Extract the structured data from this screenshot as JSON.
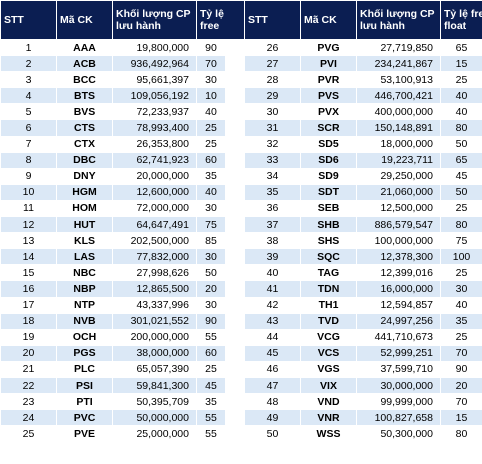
{
  "headers": {
    "stt": "STT",
    "code": "Mã CK",
    "shares_l1": "Khối lượng CP",
    "shares_l2": "lưu hành",
    "free_left_l1": "Tỷ lệ",
    "free_left_l2": "free",
    "free_right_l1": "Tỷ lệ free",
    "free_right_l2": "float"
  },
  "rows": [
    {
      "stt": "1",
      "code": "AAA",
      "shares": "19,800,000",
      "free": "90",
      "stt2": "26",
      "code2": "PVG",
      "shares2": "27,719,850",
      "free2": "65"
    },
    {
      "stt": "2",
      "code": "ACB",
      "shares": "936,492,964",
      "free": "70",
      "stt2": "27",
      "code2": "PVI",
      "shares2": "234,241,867",
      "free2": "15"
    },
    {
      "stt": "3",
      "code": "BCC",
      "shares": "95,661,397",
      "free": "30",
      "stt2": "28",
      "code2": "PVR",
      "shares2": "53,100,913",
      "free2": "25"
    },
    {
      "stt": "4",
      "code": "BTS",
      "shares": "109,056,192",
      "free": "10",
      "stt2": "29",
      "code2": "PVS",
      "shares2": "446,700,421",
      "free2": "40"
    },
    {
      "stt": "5",
      "code": "BVS",
      "shares": "72,233,937",
      "free": "40",
      "stt2": "30",
      "code2": "PVX",
      "shares2": "400,000,000",
      "free2": "40"
    },
    {
      "stt": "6",
      "code": "CTS",
      "shares": "78,993,400",
      "free": "25",
      "stt2": "31",
      "code2": "SCR",
      "shares2": "150,148,891",
      "free2": "80"
    },
    {
      "stt": "7",
      "code": "CTX",
      "shares": "26,353,800",
      "free": "25",
      "stt2": "32",
      "code2": "SD5",
      "shares2": "18,000,000",
      "free2": "50"
    },
    {
      "stt": "8",
      "code": "DBC",
      "shares": "62,741,923",
      "free": "60",
      "stt2": "33",
      "code2": "SD6",
      "shares2": "19,223,711",
      "free2": "65"
    },
    {
      "stt": "9",
      "code": "DNY",
      "shares": "20,000,000",
      "free": "35",
      "stt2": "34",
      "code2": "SD9",
      "shares2": "29,250,000",
      "free2": "45"
    },
    {
      "stt": "10",
      "code": "HGM",
      "shares": "12,600,000",
      "free": "40",
      "stt2": "35",
      "code2": "SDT",
      "shares2": "21,060,000",
      "free2": "50"
    },
    {
      "stt": "11",
      "code": "HOM",
      "shares": "72,000,000",
      "free": "30",
      "stt2": "36",
      "code2": "SEB",
      "shares2": "12,500,000",
      "free2": "25"
    },
    {
      "stt": "12",
      "code": "HUT",
      "shares": "64,647,491",
      "free": "75",
      "stt2": "37",
      "code2": "SHB",
      "shares2": "886,579,547",
      "free2": "80"
    },
    {
      "stt": "13",
      "code": "KLS",
      "shares": "202,500,000",
      "free": "85",
      "stt2": "38",
      "code2": "SHS",
      "shares2": "100,000,000",
      "free2": "75"
    },
    {
      "stt": "14",
      "code": "LAS",
      "shares": "77,832,000",
      "free": "30",
      "stt2": "39",
      "code2": "SQC",
      "shares2": "12,378,300",
      "free2": "100"
    },
    {
      "stt": "15",
      "code": "NBC",
      "shares": "27,998,626",
      "free": "50",
      "stt2": "40",
      "code2": "TAG",
      "shares2": "12,399,016",
      "free2": "25"
    },
    {
      "stt": "16",
      "code": "NBP",
      "shares": "12,865,500",
      "free": "20",
      "stt2": "41",
      "code2": "TDN",
      "shares2": "16,000,000",
      "free2": "30"
    },
    {
      "stt": "17",
      "code": "NTP",
      "shares": "43,337,996",
      "free": "30",
      "stt2": "42",
      "code2": "TH1",
      "shares2": "12,594,857",
      "free2": "40"
    },
    {
      "stt": "18",
      "code": "NVB",
      "shares": "301,021,552",
      "free": "90",
      "stt2": "43",
      "code2": "TVD",
      "shares2": "24,997,256",
      "free2": "35"
    },
    {
      "stt": "19",
      "code": "OCH",
      "shares": "200,000,000",
      "free": "55",
      "stt2": "44",
      "code2": "VCG",
      "shares2": "441,710,673",
      "free2": "25"
    },
    {
      "stt": "20",
      "code": "PGS",
      "shares": "38,000,000",
      "free": "60",
      "stt2": "45",
      "code2": "VCS",
      "shares2": "52,999,251",
      "free2": "70"
    },
    {
      "stt": "21",
      "code": "PLC",
      "shares": "65,057,390",
      "free": "25",
      "stt2": "46",
      "code2": "VGS",
      "shares2": "37,599,710",
      "free2": "90"
    },
    {
      "stt": "22",
      "code": "PSI",
      "shares": "59,841,300",
      "free": "45",
      "stt2": "47",
      "code2": "VIX",
      "shares2": "30,000,000",
      "free2": "20"
    },
    {
      "stt": "23",
      "code": "PTI",
      "shares": "50,395,709",
      "free": "35",
      "stt2": "48",
      "code2": "VND",
      "shares2": "99,999,000",
      "free2": "70"
    },
    {
      "stt": "24",
      "code": "PVC",
      "shares": "50,000,000",
      "free": "55",
      "stt2": "49",
      "code2": "VNR",
      "shares2": "100,827,658",
      "free2": "15"
    },
    {
      "stt": "25",
      "code": "PVE",
      "shares": "25,000,000",
      "free": "55",
      "stt2": "50",
      "code2": "WSS",
      "shares2": "50,300,000",
      "free2": "80"
    }
  ],
  "colors": {
    "header_bg": "#0b1e52",
    "header_text": "#ffffff",
    "alt_row_bg": "#dbe8f6",
    "row_bg": "#ffffff"
  }
}
